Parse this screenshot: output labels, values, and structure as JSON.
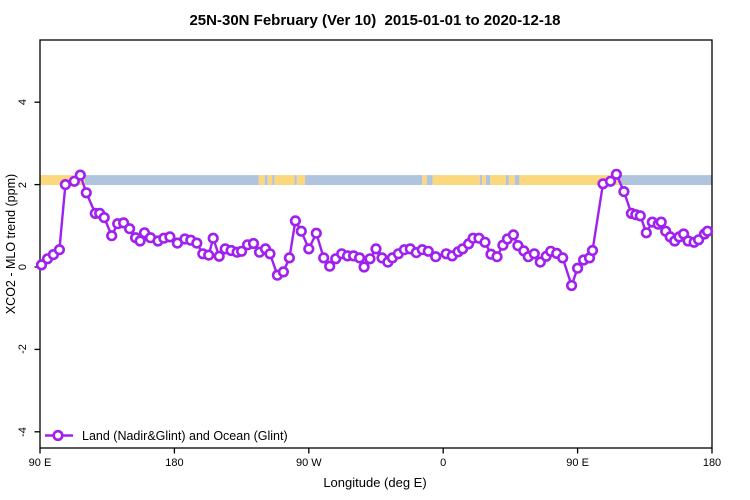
{
  "title": "25N-30N February (Ver 10)  2015-01-01 to 2020-12-18",
  "legend": {
    "label": "Land (Nadir&Glint) and Ocean (Glint)"
  },
  "colors": {
    "series": "#A020F0",
    "marker_fill": "#FFFFFF",
    "land_band": "#FBD77E",
    "ocean_band": "#B0C4DE",
    "axis": "#000000"
  },
  "chart_data": {
    "type": "line",
    "title": "25N-30N February (Ver 10)  2015-01-01 to 2020-12-18",
    "xlabel": "Longitude (deg E)",
    "ylabel": "XCO2 - MLO trend (ppm)",
    "xlim": [
      90,
      540
    ],
    "ylim": [
      -4.5,
      5.5
    ],
    "grid": false,
    "legend_position": "bottom-left",
    "x_ticks": [
      {
        "lon": 90,
        "label": "90 E"
      },
      {
        "lon": 180,
        "label": "180"
      },
      {
        "lon": 270,
        "label": "90 W"
      },
      {
        "lon": 360,
        "label": "0"
      },
      {
        "lon": 450,
        "label": "90 E"
      },
      {
        "lon": 540,
        "label": "180"
      }
    ],
    "y_ticks": [
      {
        "value": 4,
        "label": "4"
      },
      {
        "value": 2,
        "label": "2"
      },
      {
        "value": 0,
        "label": "0"
      },
      {
        "value": -2,
        "label": "-2"
      },
      {
        "value": -4,
        "label": "-4"
      }
    ],
    "band": {
      "description": "land/ocean strip along longitude",
      "value_range": [
        1.99,
        2.23
      ],
      "segments": [
        {
          "from": 90,
          "to": 120,
          "type": "land"
        },
        {
          "from": 120,
          "to": 236.5,
          "type": "ocean"
        },
        {
          "from": 236.5,
          "to": 240.5,
          "type": "land"
        },
        {
          "from": 240.5,
          "to": 242.5,
          "type": "ocean"
        },
        {
          "from": 242.5,
          "to": 245.5,
          "type": "land"
        },
        {
          "from": 245.5,
          "to": 247,
          "type": "ocean"
        },
        {
          "from": 247,
          "to": 260.5,
          "type": "land"
        },
        {
          "from": 260.5,
          "to": 262,
          "type": "ocean"
        },
        {
          "from": 262,
          "to": 267.5,
          "type": "land"
        },
        {
          "from": 267.5,
          "to": 346,
          "type": "ocean"
        },
        {
          "from": 346,
          "to": 349,
          "type": "land"
        },
        {
          "from": 349,
          "to": 353,
          "type": "ocean"
        },
        {
          "from": 353,
          "to": 384.5,
          "type": "land"
        },
        {
          "from": 384.5,
          "to": 386,
          "type": "ocean"
        },
        {
          "from": 386,
          "to": 388.5,
          "type": "land"
        },
        {
          "from": 388.5,
          "to": 391.5,
          "type": "ocean"
        },
        {
          "from": 391.5,
          "to": 402,
          "type": "land"
        },
        {
          "from": 402,
          "to": 404,
          "type": "ocean"
        },
        {
          "from": 404,
          "to": 408,
          "type": "land"
        },
        {
          "from": 408,
          "to": 411,
          "type": "ocean"
        },
        {
          "from": 411,
          "to": 478,
          "type": "land"
        },
        {
          "from": 478,
          "to": 540,
          "type": "ocean"
        }
      ]
    },
    "series": [
      {
        "name": "Land (Nadir&Glint) and Ocean (Glint)",
        "color": "#A020F0",
        "marker": "open-circle",
        "points": [
          [
            91,
            0.05
          ],
          [
            95,
            0.2
          ],
          [
            99,
            0.3
          ],
          [
            103,
            0.42
          ],
          [
            107,
            2.0
          ],
          [
            113,
            2.08
          ],
          [
            117,
            2.23
          ],
          [
            121,
            1.8
          ],
          [
            127,
            1.3
          ],
          [
            130,
            1.3
          ],
          [
            133,
            1.2
          ],
          [
            138,
            0.76
          ],
          [
            142,
            1.05
          ],
          [
            146,
            1.07
          ],
          [
            150,
            0.93
          ],
          [
            154,
            0.71
          ],
          [
            157,
            0.63
          ],
          [
            160,
            0.83
          ],
          [
            164,
            0.71
          ],
          [
            169,
            0.63
          ],
          [
            173,
            0.7
          ],
          [
            177,
            0.73
          ],
          [
            182,
            0.58
          ],
          [
            187,
            0.68
          ],
          [
            191,
            0.65
          ],
          [
            195,
            0.58
          ],
          [
            199,
            0.32
          ],
          [
            203,
            0.29
          ],
          [
            206,
            0.7
          ],
          [
            210,
            0.26
          ],
          [
            214,
            0.44
          ],
          [
            218,
            0.4
          ],
          [
            222,
            0.36
          ],
          [
            225,
            0.38
          ],
          [
            229,
            0.54
          ],
          [
            233,
            0.57
          ],
          [
            237,
            0.36
          ],
          [
            241,
            0.44
          ],
          [
            244,
            0.32
          ],
          [
            249,
            -0.2
          ],
          [
            253,
            -0.12
          ],
          [
            257,
            0.22
          ],
          [
            261,
            1.12
          ],
          [
            265,
            0.87
          ],
          [
            270,
            0.44
          ],
          [
            275,
            0.82
          ],
          [
            280,
            0.22
          ],
          [
            284,
            0.02
          ],
          [
            288,
            0.2
          ],
          [
            292,
            0.32
          ],
          [
            296,
            0.27
          ],
          [
            300,
            0.27
          ],
          [
            304,
            0.22
          ],
          [
            307,
            0.0
          ],
          [
            311,
            0.2
          ],
          [
            315,
            0.44
          ],
          [
            319,
            0.22
          ],
          [
            323,
            0.12
          ],
          [
            326,
            0.22
          ],
          [
            330,
            0.32
          ],
          [
            334,
            0.42
          ],
          [
            338,
            0.44
          ],
          [
            342,
            0.35
          ],
          [
            346,
            0.42
          ],
          [
            350,
            0.38
          ],
          [
            355,
            0.25
          ],
          [
            362,
            0.32
          ],
          [
            366,
            0.27
          ],
          [
            370,
            0.37
          ],
          [
            373,
            0.44
          ],
          [
            377,
            0.56
          ],
          [
            380,
            0.7
          ],
          [
            384,
            0.7
          ],
          [
            388,
            0.6
          ],
          [
            392,
            0.31
          ],
          [
            396,
            0.25
          ],
          [
            400,
            0.53
          ],
          [
            403,
            0.68
          ],
          [
            407,
            0.78
          ],
          [
            410,
            0.52
          ],
          [
            414,
            0.39
          ],
          [
            417,
            0.25
          ],
          [
            421,
            0.32
          ],
          [
            425,
            0.12
          ],
          [
            429,
            0.26
          ],
          [
            432,
            0.38
          ],
          [
            436,
            0.33
          ],
          [
            440,
            0.22
          ],
          [
            446,
            -0.45
          ],
          [
            450,
            -0.03
          ],
          [
            454,
            0.17
          ],
          [
            458,
            0.22
          ],
          [
            460,
            0.4
          ],
          [
            467,
            2.02
          ],
          [
            472,
            2.08
          ],
          [
            476,
            2.25
          ],
          [
            481,
            1.83
          ],
          [
            486,
            1.3
          ],
          [
            489,
            1.27
          ],
          [
            492,
            1.24
          ],
          [
            496,
            0.83
          ],
          [
            500,
            1.09
          ],
          [
            504,
            1.04
          ],
          [
            506,
            1.09
          ],
          [
            509,
            0.87
          ],
          [
            512,
            0.73
          ],
          [
            515,
            0.63
          ],
          [
            518,
            0.73
          ],
          [
            521,
            0.8
          ],
          [
            524,
            0.63
          ],
          [
            528,
            0.6
          ],
          [
            531,
            0.66
          ],
          [
            535,
            0.8
          ],
          [
            537,
            0.87
          ]
        ]
      }
    ]
  }
}
